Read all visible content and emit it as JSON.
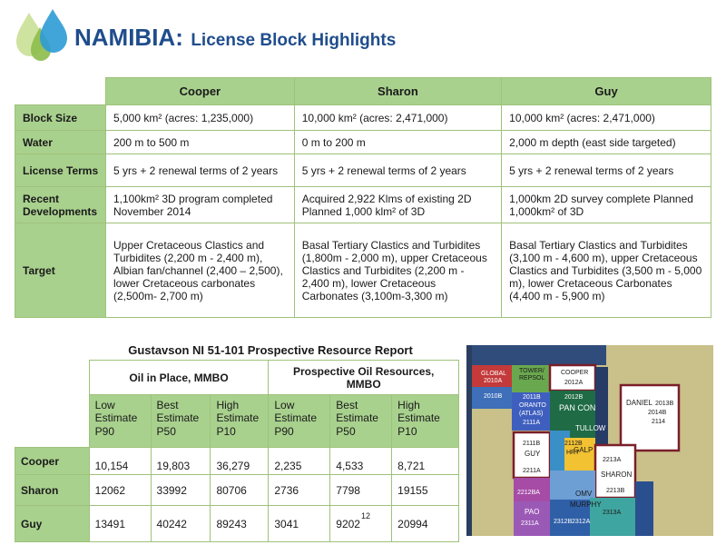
{
  "header": {
    "title_main": "NAMIBIA:",
    "title_sub": "License Block Highlights"
  },
  "license_table": {
    "columns": [
      "Cooper",
      "Sharon",
      "Guy"
    ],
    "rows": [
      {
        "label": "Block Size",
        "cells": [
          "5,000 km² (acres: 1,235,000)",
          "10,000 km² (acres: 2,471,000)",
          "10,000 km² (acres: 2,471,000)"
        ]
      },
      {
        "label": "Water",
        "cells": [
          "200 m to 500 m",
          "0 m to 200 m",
          "2,000 m depth (east side targeted)"
        ]
      },
      {
        "label": "License Terms",
        "cells": [
          "5 yrs + 2 renewal terms of 2 years",
          "5 yrs + 2 renewal terms of 2 years",
          "5 yrs + 2 renewal terms of 2 years"
        ]
      },
      {
        "label": "Recent Developments",
        "cells": [
          "1,100km² 3D program completed November 2014",
          "Acquired 2,922 Klms of existing 2D Planned 1,000 klm² of 3D",
          "1,000km 2D survey complete Planned 1,000km² of 3D"
        ]
      },
      {
        "label": "Target",
        "cells": [
          "Upper Cretaceous Clastics and Turbidites (2,200 m - 2,400 m), Albian fan/channel (2,400 – 2,500), lower Cretaceous carbonates (2,500m- 2,700 m)",
          "Basal Tertiary Clastics and Turbidites (1,800m  - 2,000 m), upper Cretaceous Clastics and Turbidites (2,200 m - 2,400 m), lower Cretaceous Carbonates (3,100m-3,300 m)",
          "Basal Tertiary Clastics and Turbidites (3,100 m - 4,600 m), upper Cretaceous Clastics and Turbidites (3,500 m - 5,000 m), lower Cretaceous Carbonates (4,400 m - 5,900 m)"
        ]
      }
    ]
  },
  "resource_report": {
    "title": "Gustavson NI 51-101  Prospective Resource Report",
    "groups": [
      "Oil in Place, MMBO",
      "Prospective Oil Resources, MMBO"
    ],
    "subheaders": [
      "Low Estimate P90",
      "Best Estimate P50",
      "High Estimate P10",
      "Low Estimate P90",
      "Best Estimate P50",
      "High Estimate P10"
    ],
    "rows": [
      {
        "label": "Cooper",
        "values": [
          "10,154",
          "19,803",
          "36,279",
          "2,235",
          "4,533",
          "8,721"
        ]
      },
      {
        "label": "Sharon",
        "values": [
          "12062",
          "33992",
          "80706",
          "2736",
          "7798",
          "19155"
        ]
      },
      {
        "label": "Guy",
        "values": [
          "13491",
          "40242",
          "89243",
          "3041",
          "9202",
          "20994"
        ]
      }
    ]
  },
  "page_number": "12",
  "map": {
    "labels": {
      "global": "GLOBAL",
      "global_id": "2010A",
      "global_id2": "2010B",
      "tower": "TOWER/",
      "repsol": "REPSOL",
      "cooper": "COOPER",
      "cooper_id": "2012A",
      "oranto": "ORANTO",
      "atlas": "(ATLAS)",
      "b2011b": "2011B",
      "b2111a": "2111A",
      "b2012b": "2012B",
      "pancon": "PAN CON",
      "daniel": "DANIEL",
      "b2013b": "2013B",
      "b2014b": "2014B",
      "b2114": "2114",
      "tullow": "TULLOW",
      "guy": "GUY",
      "b2111b": "2111B",
      "b2211a": "2211A",
      "hrt": "HRT",
      "b2112b": "2112B",
      "galp": "GALP",
      "b2213a": "2213A",
      "sharon": "SHARON",
      "b2213b": "2213B",
      "omv": "OMV",
      "murphy": "MURPHY",
      "b2212ba": "2212BA",
      "pao": "PAO",
      "b2311a": "2311A",
      "b2312b": "2312B",
      "b2312a": "2312A",
      "b2313a": "2313A"
    }
  }
}
